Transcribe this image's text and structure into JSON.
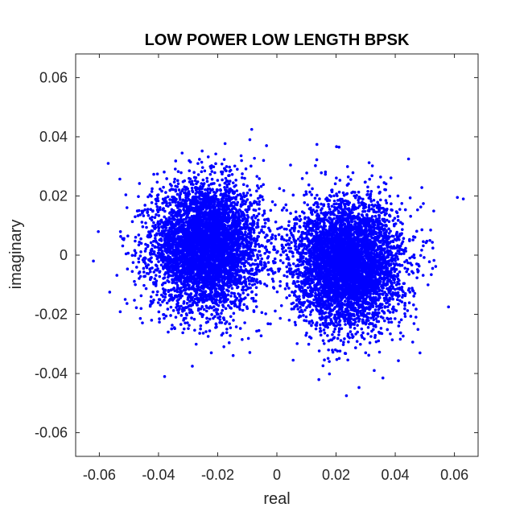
{
  "chart_data": {
    "type": "scatter",
    "title": "LOW POWER LOW LENGTH BPSK",
    "xlabel": "real",
    "ylabel": "imaginary",
    "xlim": [
      -0.068,
      0.068
    ],
    "ylim": [
      -0.068,
      0.068
    ],
    "xticks": [
      -0.06,
      -0.04,
      -0.02,
      0,
      0.02,
      0.04,
      0.06
    ],
    "xtick_labels": [
      "-0.06",
      "-0.04",
      "-0.02",
      "0",
      "0.02",
      "0.04",
      "0.06"
    ],
    "yticks": [
      -0.06,
      -0.04,
      -0.02,
      0,
      0.02,
      0.04,
      0.06
    ],
    "ytick_labels": [
      "-0.06",
      "-0.04",
      "-0.02",
      "0",
      "0.02",
      "0.04",
      "0.06"
    ],
    "grid": false,
    "marker_color": "#0000ff",
    "series": [
      {
        "cluster_center": [
          -0.024,
          0.003
        ],
        "spread_std": [
          0.009,
          0.0105
        ],
        "point_count": 5000
      },
      {
        "cluster_center": [
          0.024,
          -0.003
        ],
        "spread_std": [
          0.009,
          0.0105
        ],
        "point_count": 5000
      }
    ],
    "outliers": [
      [
        -0.0085,
        0.0425
      ],
      [
        0.0235,
        -0.0475
      ],
      [
        -0.057,
        0.031
      ],
      [
        0.063,
        0.019
      ],
      [
        -0.062,
        -0.002
      ],
      [
        0.061,
        0.0195
      ],
      [
        0.0055,
        -0.0355
      ],
      [
        -0.0035,
        0.037
      ],
      [
        0.021,
        0.0365
      ],
      [
        0.0445,
        0.0325
      ],
      [
        -0.0045,
        0.032
      ],
      [
        0.058,
        -0.0175
      ]
    ]
  }
}
